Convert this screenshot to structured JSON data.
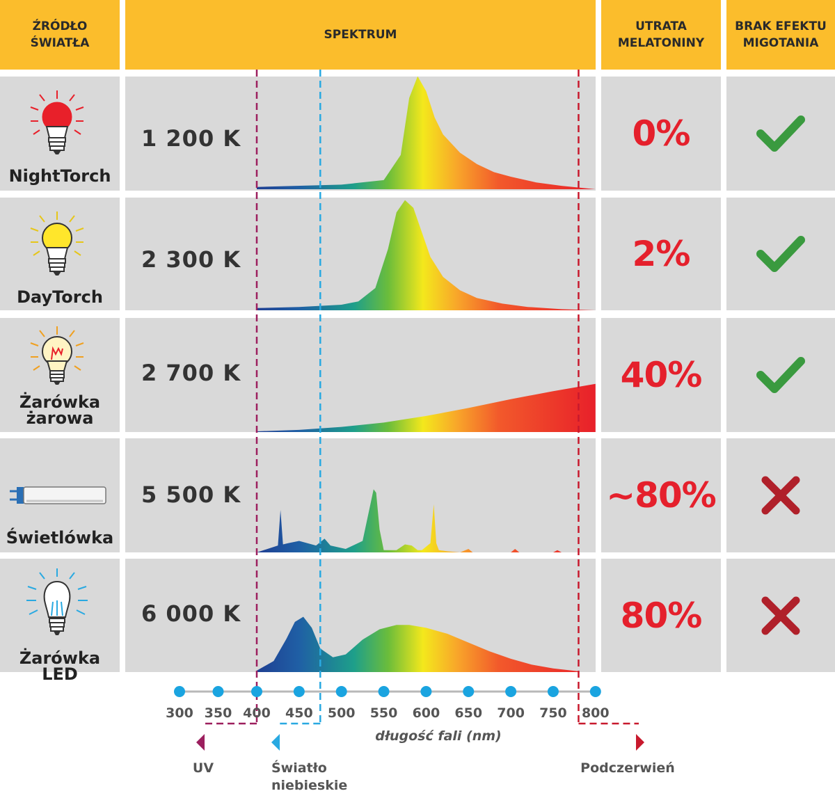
{
  "headers": {
    "source": [
      "ŹRÓDŁO",
      "ŚWIATŁA"
    ],
    "spectrum": "SPEKTRUM",
    "melatonin": [
      "UTRATA",
      "MELATONINY"
    ],
    "flicker": [
      "BRAK EFEKTU",
      "MIGOTANIA"
    ]
  },
  "colors": {
    "header": "#fbbd2c",
    "row": "#d9d9d9",
    "percent": "#e5202c",
    "check": "#3a9a3f",
    "cross": "#b0202a",
    "uv_line": "#9c1f5e",
    "blue_line": "#29a9e1",
    "ir_line": "#c8192d",
    "axis_dot": "#1aa4e0"
  },
  "rows": [
    {
      "name": [
        "NightTorch"
      ],
      "temperature": "1 200 K",
      "melatonin_loss": "0%",
      "no_flicker": true,
      "icon": "red-bulb-icon",
      "bulb_color": "#e8202a"
    },
    {
      "name": [
        "DayTorch"
      ],
      "temperature": "2 300 K",
      "melatonin_loss": "2%",
      "no_flicker": true,
      "icon": "yellow-bulb-icon",
      "bulb_color": "#ffe62b"
    },
    {
      "name": [
        "Żarówka",
        "żarowa"
      ],
      "temperature": "2 700 K",
      "melatonin_loss": "40%",
      "no_flicker": true,
      "icon": "incandescent-bulb-icon",
      "bulb_color": "#fff4c4"
    },
    {
      "name": [
        "Świetlówka"
      ],
      "temperature": "5 500 K",
      "melatonin_loss": "~80%",
      "no_flicker": false,
      "icon": "fluorescent-tube-icon",
      "bulb_color": "#f4f4f4"
    },
    {
      "name": [
        "Żarówka LED"
      ],
      "temperature": "6 000 K",
      "melatonin_loss": "80%",
      "no_flicker": false,
      "icon": "led-bulb-icon",
      "bulb_color": "#ffffff"
    }
  ],
  "axis": {
    "title": "długość fali (nm)",
    "bands": {
      "uv": "UV",
      "blue": [
        "Światło",
        "niebieskie"
      ],
      "ir": "Podczerwień"
    }
  },
  "chart_data": {
    "type": "area",
    "x_unit": "nm",
    "xlim": [
      300,
      800
    ],
    "x_ticks": [
      300,
      350,
      400,
      450,
      500,
      550,
      600,
      650,
      700,
      750,
      800
    ],
    "y_unit": "relative intensity",
    "ylim": [
      0,
      1
    ],
    "markers": {
      "uv_limit": 400,
      "blue_limit": 475,
      "ir_limit": 780
    },
    "series": [
      {
        "name": "NightTorch",
        "x": [
          400,
          500,
          550,
          570,
          580,
          590,
          600,
          610,
          620,
          640,
          660,
          680,
          700,
          730,
          760,
          800
        ],
        "y": [
          0.02,
          0.04,
          0.08,
          0.3,
          0.8,
          0.99,
          0.86,
          0.63,
          0.48,
          0.32,
          0.22,
          0.15,
          0.11,
          0.06,
          0.03,
          0.0
        ]
      },
      {
        "name": "DayTorch",
        "x": [
          400,
          450,
          500,
          520,
          540,
          555,
          565,
          575,
          585,
          595,
          605,
          620,
          640,
          660,
          690,
          720,
          760,
          800
        ],
        "y": [
          0.02,
          0.03,
          0.05,
          0.08,
          0.2,
          0.55,
          0.88,
          0.99,
          0.92,
          0.7,
          0.48,
          0.3,
          0.18,
          0.11,
          0.06,
          0.03,
          0.01,
          0.0
        ]
      },
      {
        "name": "Żarówka żarowa",
        "x": [
          400,
          450,
          500,
          550,
          600,
          650,
          700,
          750,
          800
        ],
        "y": [
          0.01,
          0.03,
          0.07,
          0.13,
          0.22,
          0.33,
          0.45,
          0.56,
          0.66
        ]
      },
      {
        "name": "Świetlówka",
        "x": [
          400,
          425,
          428,
          431,
          437,
          450,
          470,
          480,
          487,
          493,
          505,
          525,
          538,
          541,
          545,
          550,
          565,
          575,
          583,
          590,
          595,
          605,
          609,
          612,
          615,
          625,
          640,
          650,
          655,
          660,
          700,
          705,
          710,
          750,
          755,
          760,
          780
        ],
        "y": [
          0.0,
          0.06,
          0.37,
          0.07,
          0.08,
          0.1,
          0.06,
          0.12,
          0.06,
          0.05,
          0.03,
          0.1,
          0.55,
          0.52,
          0.2,
          0.02,
          0.02,
          0.07,
          0.06,
          0.02,
          0.02,
          0.08,
          0.42,
          0.08,
          0.02,
          0.01,
          0.0,
          0.03,
          0.0,
          0.0,
          0.0,
          0.03,
          0.0,
          0.0,
          0.02,
          0.0,
          0.0
        ]
      },
      {
        "name": "Żarówka LED",
        "x": [
          400,
          420,
          435,
          445,
          455,
          465,
          475,
          490,
          505,
          525,
          545,
          565,
          580,
          600,
          625,
          650,
          675,
          700,
          725,
          750,
          780
        ],
        "y": [
          0.02,
          0.15,
          0.45,
          0.68,
          0.75,
          0.6,
          0.32,
          0.2,
          0.24,
          0.44,
          0.58,
          0.64,
          0.64,
          0.6,
          0.52,
          0.4,
          0.28,
          0.18,
          0.1,
          0.05,
          0.01
        ]
      }
    ]
  }
}
